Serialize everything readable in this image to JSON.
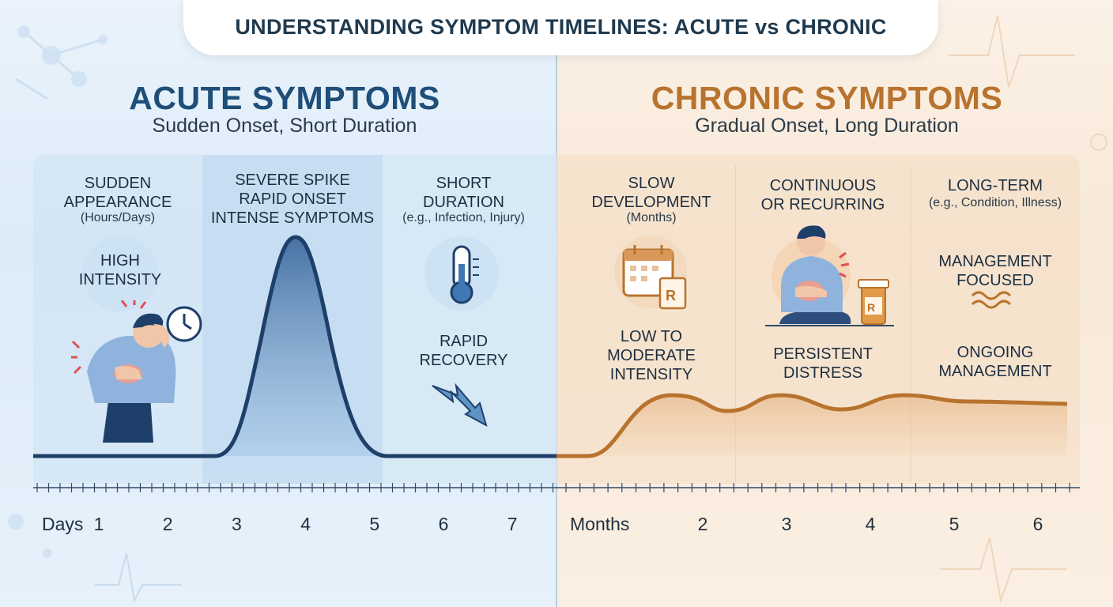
{
  "title": "UNDERSTANDING SYMPTOM TIMELINES: ACUTE vs CHRONIC",
  "colors": {
    "acute_accent": "#1f4e79",
    "chronic_accent": "#b8732e",
    "acute_bg": "#dcebf8",
    "chronic_bg": "#f8e9d8"
  },
  "acute": {
    "heading": "ACUTE SYMPTOMS",
    "subheading": "Sudden Onset, Short Duration",
    "col1": {
      "line1": "SUDDEN",
      "line2": "APPEARANCE",
      "note": "(Hours/Days)",
      "badge1": "HIGH",
      "badge2": "INTENSITY"
    },
    "col2": {
      "line1": "SEVERE SPIKE",
      "line2": "RAPID ONSET",
      "line3": "INTENSE SYMPTOMS"
    },
    "col3": {
      "line1": "SHORT",
      "line2": "DURATION",
      "note": "(e.g., Infection, Injury)",
      "recovery1": "RAPID",
      "recovery2": "RECOVERY"
    },
    "axis_label": "Days",
    "ticks": [
      "1",
      "2",
      "3",
      "4",
      "5",
      "6",
      "7"
    ],
    "icons": [
      "headache-person-icon",
      "clock-icon",
      "thermometer-icon",
      "down-arrow-icon"
    ]
  },
  "chronic": {
    "heading": "CHRONIC SYMPTOMS",
    "subheading": "Gradual Onset, Long Duration",
    "col1": {
      "line1": "SLOW",
      "line2": "DEVELOPMENT",
      "note": "(Months)",
      "intensity1": "LOW TO",
      "intensity2": "MODERATE",
      "intensity3": "INTENSITY"
    },
    "col2": {
      "line1": "CONTINUOUS",
      "line2": "OR RECURRING",
      "distress1": "PERSISTENT",
      "distress2": "DISTRESS"
    },
    "col3": {
      "line1": "LONG-TERM",
      "note": "(e.g., Condition, Illness)",
      "mgmt1": "MANAGEMENT",
      "mgmt2": "FOCUSED",
      "ongoing1": "ONGOING",
      "ongoing2": "MANAGEMENT"
    },
    "axis_label": "Months",
    "ticks": [
      "2",
      "3",
      "4",
      "5",
      "6"
    ],
    "icons": [
      "calendar-icon",
      "prescription-icon",
      "stomach-pain-person-icon",
      "pill-bottle-icon",
      "wave-icon"
    ]
  }
}
